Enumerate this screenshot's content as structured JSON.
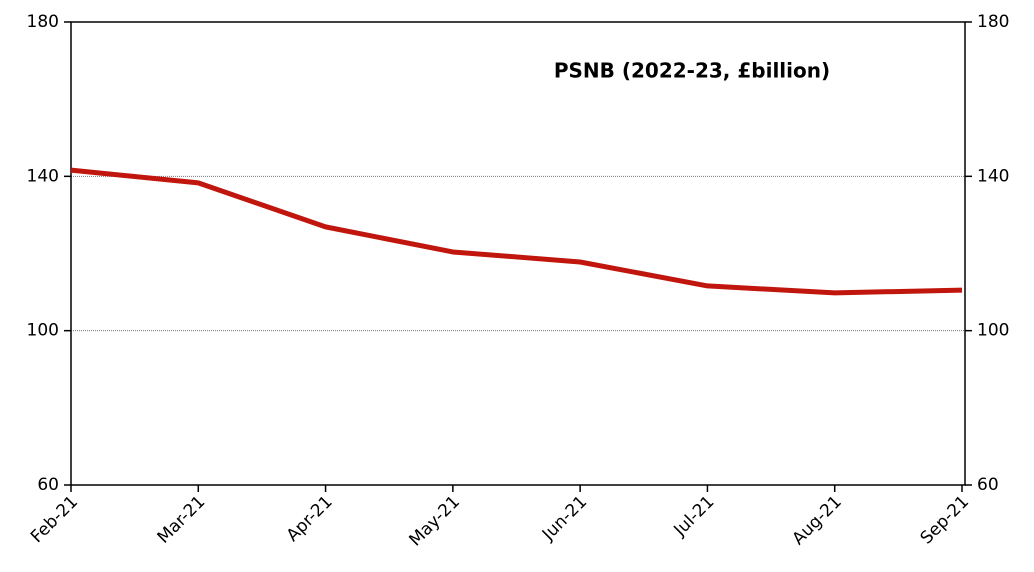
{
  "chart_data": {
    "type": "line",
    "title": "PSNB (2022-23, £billion)",
    "categories": [
      "Feb-21",
      "Mar-21",
      "Apr-21",
      "May-21",
      "Jun-21",
      "Jul-21",
      "Aug-21",
      "Sep-21"
    ],
    "series": [
      {
        "name": "PSNB",
        "color": "#c0160e",
        "values": [
          141.6,
          138.3,
          126.9,
          120.4,
          117.8,
          111.6,
          109.8,
          110.5
        ]
      }
    ],
    "ylim": [
      60,
      180
    ],
    "yticks": [
      60,
      100,
      140,
      180
    ],
    "y2lim": [
      60,
      180
    ],
    "y2ticks": [
      60,
      100,
      140,
      180
    ],
    "grid": true
  }
}
